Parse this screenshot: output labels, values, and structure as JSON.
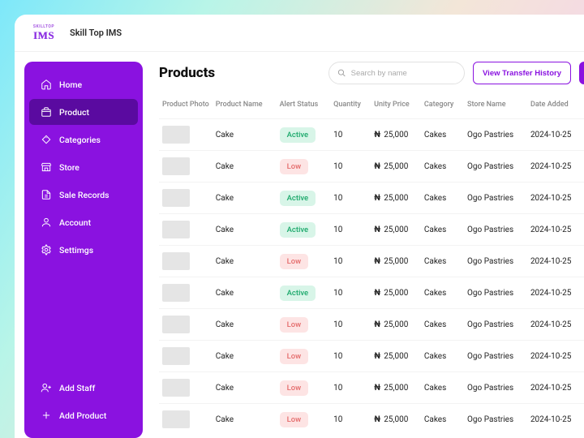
{
  "app": {
    "logo_top": "SKILLTOP",
    "logo_main": "IMS",
    "title": "Skill Top IMS"
  },
  "sidebar": {
    "items": [
      {
        "label": "Home"
      },
      {
        "label": "Product"
      },
      {
        "label": "Categories"
      },
      {
        "label": "Store"
      },
      {
        "label": "Sale Records"
      },
      {
        "label": "Account"
      },
      {
        "label": "Settimgs"
      }
    ],
    "bottom": [
      {
        "label": "Add Staff"
      },
      {
        "label": "Add Product"
      }
    ],
    "active_index": 1
  },
  "page": {
    "title": "Products",
    "search_placeholder": "Search by name",
    "transfer_btn": "View Transfer History"
  },
  "table": {
    "columns": [
      "Product Photo",
      "Product Name",
      "Alert Status",
      "Quantity",
      "Unity Price",
      "Category",
      "Store Name",
      "Date Added"
    ],
    "currency_symbol": "₦",
    "status_styles": {
      "Active": {
        "bg": "#d8f5e8",
        "fg": "#1aa86a"
      },
      "Low": {
        "bg": "#fde4e4",
        "fg": "#e46a6a"
      }
    },
    "rows": [
      {
        "name": "Cake",
        "status": "Active",
        "qty": "10",
        "price": "25,000",
        "category": "Cakes",
        "store": "Ogo Pastries",
        "date": "2024-10-25"
      },
      {
        "name": "Cake",
        "status": "Low",
        "qty": "10",
        "price": "25,000",
        "category": "Cakes",
        "store": "Ogo Pastries",
        "date": "2024-10-25"
      },
      {
        "name": "Cake",
        "status": "Active",
        "qty": "10",
        "price": "25,000",
        "category": "Cakes",
        "store": "Ogo Pastries",
        "date": "2024-10-25"
      },
      {
        "name": "Cake",
        "status": "Active",
        "qty": "10",
        "price": "25,000",
        "category": "Cakes",
        "store": "Ogo Pastries",
        "date": "2024-10-25"
      },
      {
        "name": "Cake",
        "status": "Low",
        "qty": "10",
        "price": "25,000",
        "category": "Cakes",
        "store": "Ogo Pastries",
        "date": "2024-10-25"
      },
      {
        "name": "Cake",
        "status": "Active",
        "qty": "10",
        "price": "25,000",
        "category": "Cakes",
        "store": "Ogo Pastries",
        "date": "2024-10-25"
      },
      {
        "name": "Cake",
        "status": "Low",
        "qty": "10",
        "price": "25,000",
        "category": "Cakes",
        "store": "Ogo Pastries",
        "date": "2024-10-25"
      },
      {
        "name": "Cake",
        "status": "Low",
        "qty": "10",
        "price": "25,000",
        "category": "Cakes",
        "store": "Ogo Pastries",
        "date": "2024-10-25"
      },
      {
        "name": "Cake",
        "status": "Low",
        "qty": "10",
        "price": "25,000",
        "category": "Cakes",
        "store": "Ogo Pastries",
        "date": "2024-10-25"
      },
      {
        "name": "Cake",
        "status": "Low",
        "qty": "10",
        "price": "25,000",
        "category": "Cakes",
        "store": "Ogo Pastries",
        "date": "2024-10-25"
      }
    ]
  },
  "colors": {
    "sidebar_bg": "#8a12e0",
    "sidebar_active_bg": "#5a0aa0",
    "accent": "#8a12e0"
  }
}
